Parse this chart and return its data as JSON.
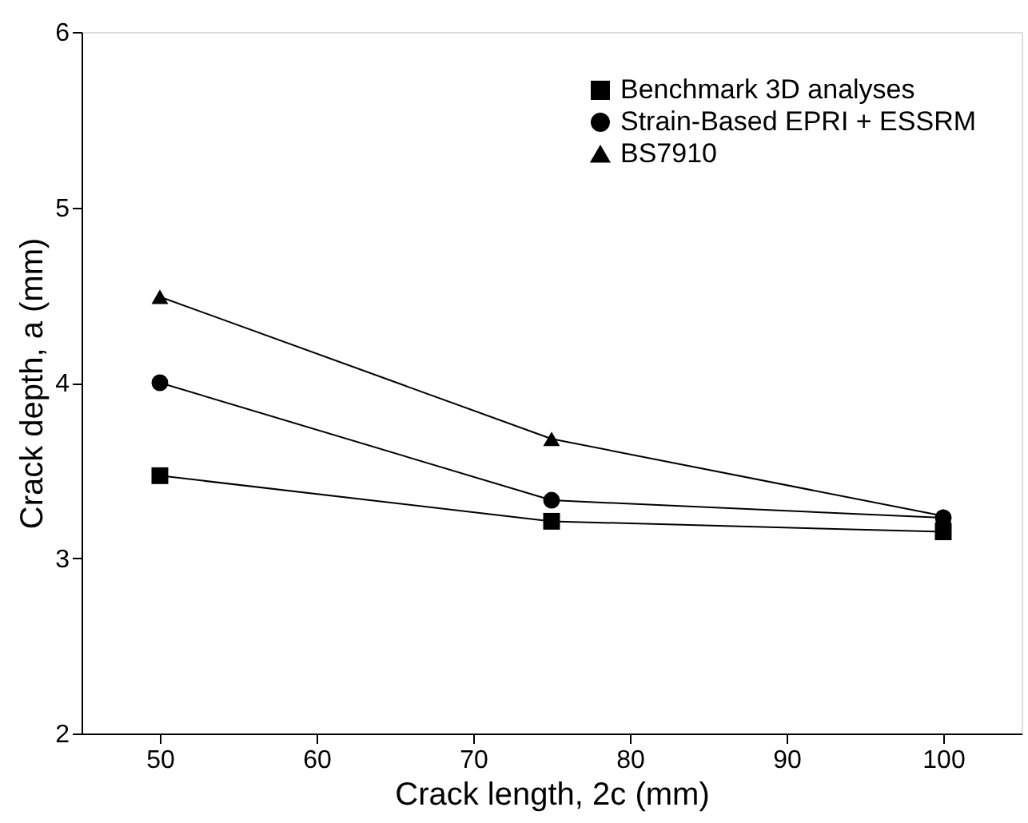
{
  "chart_data": {
    "type": "line",
    "xlabel": "Crack length, 2c (mm)",
    "ylabel": "Crack depth, a (mm)",
    "x": [
      50,
      75,
      100
    ],
    "series": [
      {
        "name": "Benchmark 3D analyses",
        "color": "#000000",
        "marker": "square",
        "values": [
          3.47,
          3.21,
          3.15
        ]
      },
      {
        "name": "Strain-Based EPRI + ESSRM",
        "color": "#000000",
        "marker": "circle",
        "values": [
          4.0,
          3.33,
          3.23
        ]
      },
      {
        "name": "BS7910",
        "color": "#000000",
        "marker": "triangle",
        "values": [
          4.49,
          3.68,
          3.24
        ]
      }
    ],
    "xlim": [
      45,
      105
    ],
    "xticks": [
      50,
      60,
      70,
      80,
      90,
      100
    ],
    "ylim": [
      2,
      6
    ],
    "yticks": [
      2,
      3,
      4,
      5,
      6
    ],
    "grid": false,
    "legend": "top right",
    "line_style": "solid"
  }
}
